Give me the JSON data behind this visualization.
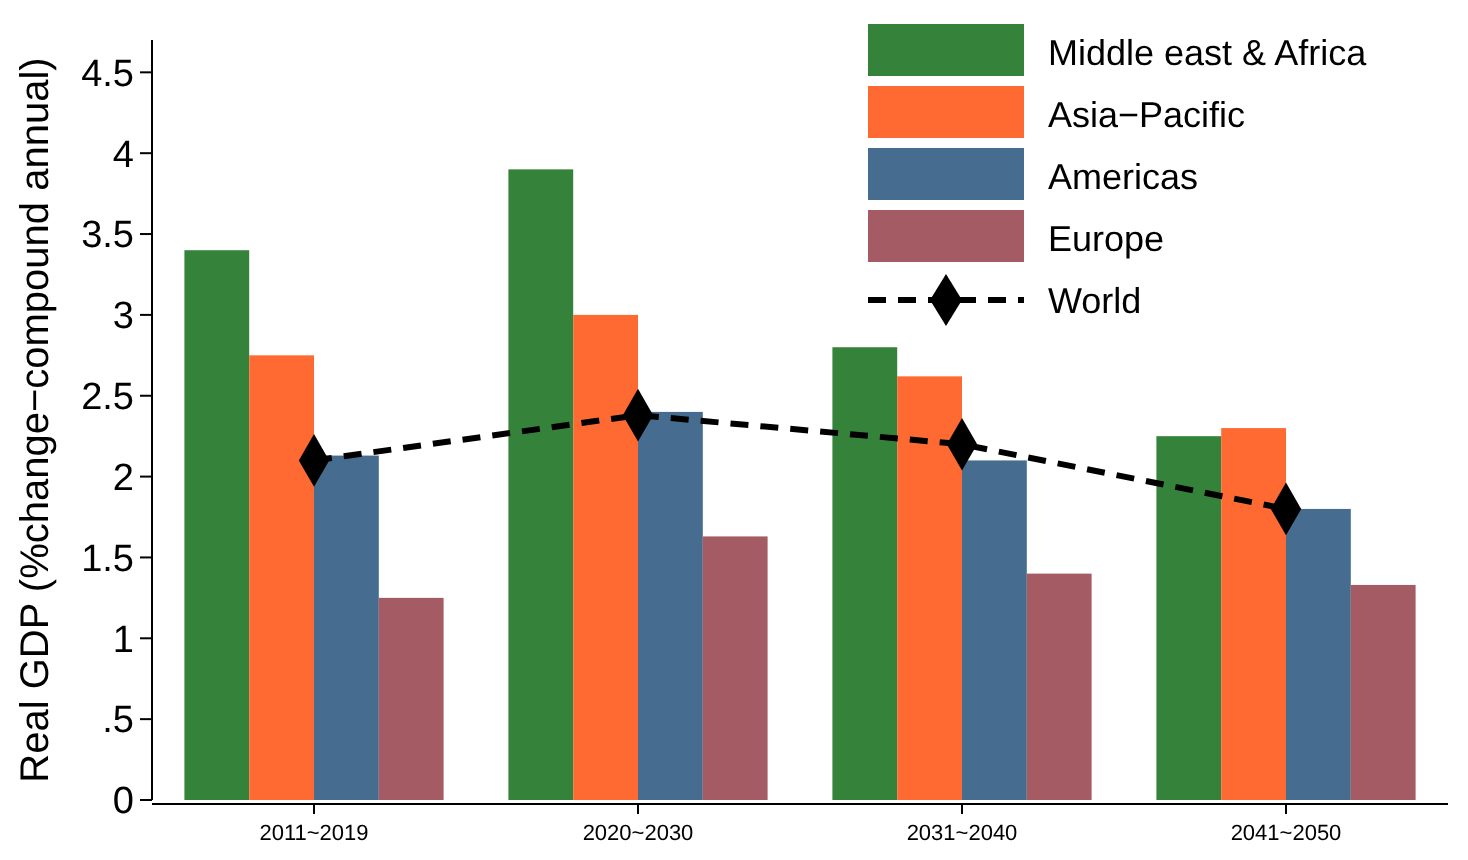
{
  "chart_data": {
    "type": "bar",
    "ylabel": "Real GDP (%change−compound annual)",
    "categories": [
      "2011~2019",
      "2020~2030",
      "2031~2040",
      "2041~2050"
    ],
    "series": [
      {
        "name": "Middle east & Africa",
        "color": "#35833a",
        "values": [
          3.4,
          3.9,
          2.8,
          2.25
        ]
      },
      {
        "name": "Asia−Pacific",
        "color": "#ff6a33",
        "values": [
          2.75,
          3.0,
          2.62,
          2.3
        ]
      },
      {
        "name": "Americas",
        "color": "#466d8f",
        "values": [
          2.13,
          2.4,
          2.1,
          1.8
        ]
      },
      {
        "name": "Europe",
        "color": "#a45b63",
        "values": [
          1.25,
          1.63,
          1.4,
          1.33
        ]
      },
      {
        "name": "World",
        "type": "line",
        "color": "#000000",
        "marker": "diamond",
        "line_style": "dashed",
        "values": [
          2.1,
          2.38,
          2.2,
          1.8
        ]
      }
    ],
    "ylim": [
      0,
      4.7
    ],
    "yticks": [
      0,
      {
        "value": 0.5,
        "label": ".5"
      },
      1,
      1.5,
      2,
      2.5,
      3,
      3.5,
      4,
      4.5
    ],
    "grid": false,
    "legend": "top right"
  }
}
